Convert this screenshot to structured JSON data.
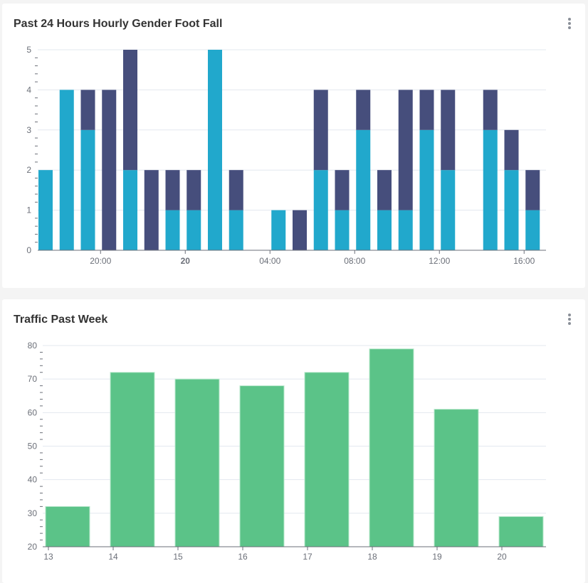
{
  "colors": {
    "series_a": "#21a8cc",
    "series_b": "#464e7c",
    "weekly": "#5bc388",
    "grid": "#e3e8ef",
    "axis": "#6b6f78"
  },
  "cards": [
    {
      "title": "Past 24 Hours Hourly Gender Foot Fall",
      "menu_icon": "more-vertical-icon"
    },
    {
      "title": "Traffic Past Week",
      "menu_icon": "more-vertical-icon"
    }
  ],
  "chart_data": [
    {
      "type": "bar",
      "stacked": true,
      "title": "Past 24 Hours Hourly Gender Foot Fall",
      "xlabel": "",
      "ylabel": "",
      "ylim": [
        0,
        5
      ],
      "yticks": [
        "0",
        "1",
        "2",
        "3",
        "4",
        "5"
      ],
      "grid": true,
      "legend": "none",
      "x_tick_labels": [
        {
          "bar_index": 3,
          "label": "20:00",
          "bold": false
        },
        {
          "bar_index": 7,
          "label": "20",
          "bold": true
        },
        {
          "bar_index": 11,
          "label": "04:00",
          "bold": false
        },
        {
          "bar_index": 15,
          "label": "08:00",
          "bold": false
        },
        {
          "bar_index": 19,
          "label": "12:00",
          "bold": false
        },
        {
          "bar_index": 23,
          "label": "16:00",
          "bold": false
        }
      ],
      "series": [
        {
          "name": "series_a",
          "values": [
            2,
            4,
            3,
            0,
            2,
            0,
            1,
            1,
            5,
            1,
            0,
            1,
            0,
            2,
            1,
            3,
            1,
            1,
            3,
            2,
            0,
            3,
            2,
            1
          ]
        },
        {
          "name": "series_b",
          "values": [
            0,
            0,
            1,
            4,
            3,
            2,
            1,
            1,
            0,
            1,
            0,
            0,
            1,
            2,
            1,
            1,
            1,
            3,
            1,
            2,
            0,
            1,
            1,
            1
          ]
        }
      ]
    },
    {
      "type": "bar",
      "title": "Traffic Past Week",
      "xlabel": "",
      "ylabel": "",
      "categories": [
        "13",
        "14",
        "15",
        "16",
        "17",
        "18",
        "19",
        "20"
      ],
      "values": [
        32,
        72,
        70,
        68,
        72,
        79,
        61,
        29
      ],
      "ylim": [
        20,
        80
      ],
      "yticks": [
        "20",
        "30",
        "40",
        "50",
        "60",
        "70",
        "80"
      ],
      "grid": true,
      "legend": "none"
    }
  ]
}
